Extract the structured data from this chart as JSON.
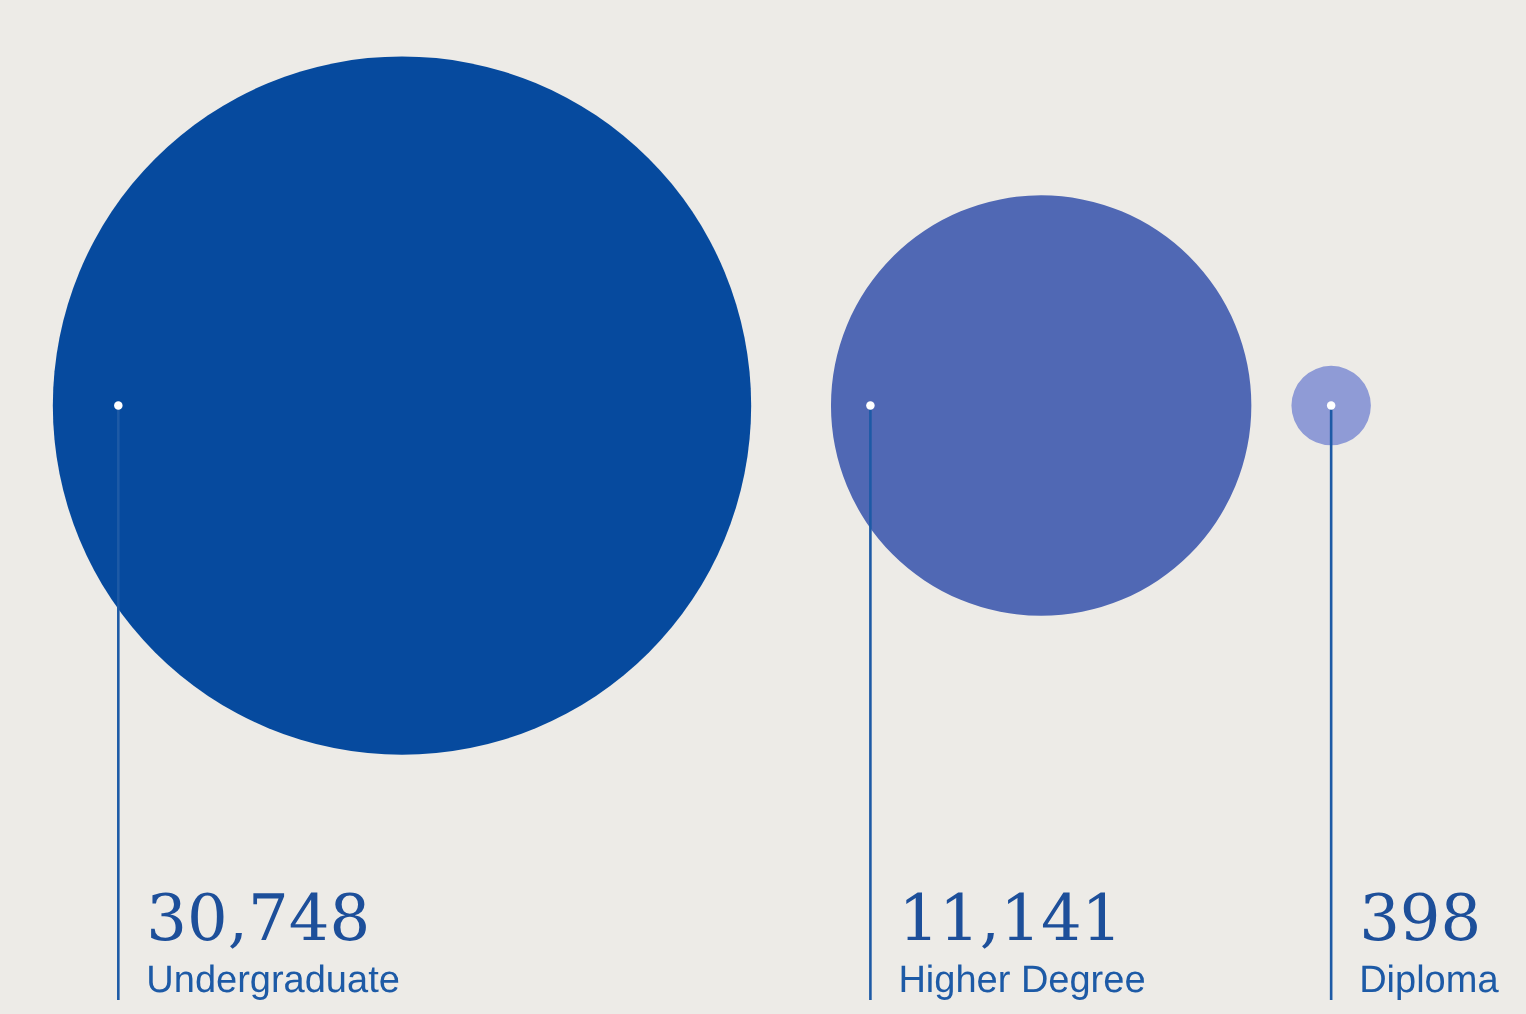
{
  "chart_data": {
    "type": "other",
    "categories": [
      "Undergraduate",
      "Higher Degree",
      "Diploma"
    ],
    "values": [
      30748,
      11141,
      398
    ],
    "value_labels": [
      "30,748",
      "11,141",
      "398"
    ],
    "colors": [
      "#064a9e",
      "#5068b4",
      "#8f9bd6"
    ]
  }
}
